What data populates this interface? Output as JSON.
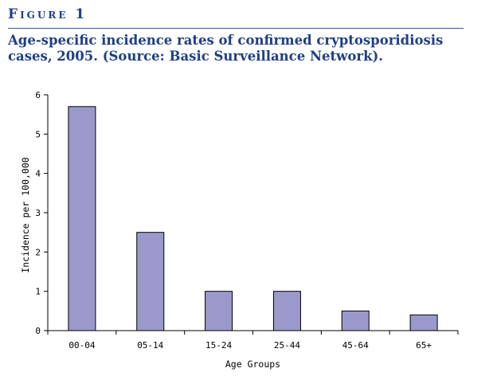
{
  "header": {
    "figure_label": "Figure 1",
    "title": "Age-specific incidence rates of confirmed cryptosporidiosis cases, 2005. (Source: Basic Surveillance Network)."
  },
  "colors": {
    "bar_fill": "#9b99cc",
    "bar_stroke": "#000000",
    "header_text": "#1f3f86"
  },
  "chart_data": {
    "type": "bar",
    "categories": [
      "00-04",
      "05-14",
      "15-24",
      "25-44",
      "45-64",
      "65+"
    ],
    "values": [
      5.7,
      2.5,
      1.0,
      1.0,
      0.5,
      0.4
    ],
    "xlabel": "Age Groups",
    "ylabel": "Incidence per 100,000",
    "ylim": [
      0,
      6
    ],
    "yticks": [
      0,
      1,
      2,
      3,
      4,
      5,
      6
    ],
    "grid": false,
    "legend": "none"
  }
}
